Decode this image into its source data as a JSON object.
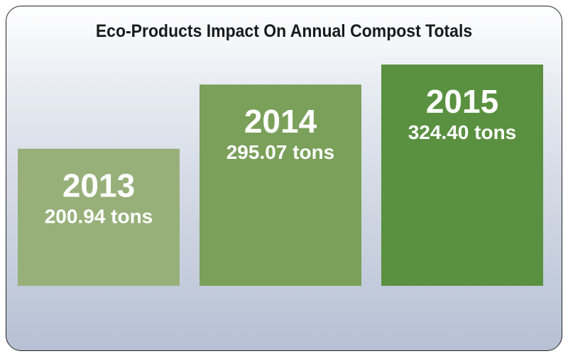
{
  "chart_data": {
    "type": "bar",
    "title": "Eco-Products Impact On Annual Compost Totals",
    "categories": [
      "2013",
      "2014",
      "2015"
    ],
    "values": [
      200.94,
      295.07,
      324.4
    ],
    "value_labels": [
      "200.94 tons",
      "295.07 tons",
      "324.40 tons"
    ],
    "unit": "tons",
    "colors": [
      "#97b07a",
      "#7aa05a",
      "#5a9140"
    ],
    "grid": false,
    "xlabel": "",
    "ylabel": ""
  }
}
